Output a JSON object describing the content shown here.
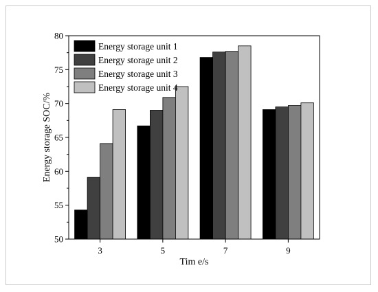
{
  "chart_data": {
    "type": "bar",
    "title": "",
    "xlabel": "Tim e/s",
    "ylabel": "Energy storage SOC/%",
    "categories": [
      "3",
      "5",
      "7",
      "9"
    ],
    "ylim": [
      50,
      80
    ],
    "yticks": [
      50,
      55,
      60,
      65,
      70,
      75,
      80
    ],
    "grid": false,
    "legend_position": "top-left",
    "series": [
      {
        "name": "Energy storage unit 1",
        "color": "#000000",
        "values": [
          54.3,
          66.7,
          76.8,
          69.1
        ]
      },
      {
        "name": "Energy storage unit 2",
        "color": "#404040",
        "values": [
          59.1,
          69.0,
          77.6,
          69.5
        ]
      },
      {
        "name": "Energy storage unit 3",
        "color": "#7f7f7f",
        "values": [
          64.1,
          70.9,
          77.7,
          69.7
        ]
      },
      {
        "name": "Energy storage unit 4",
        "color": "#c0c0c0",
        "values": [
          69.1,
          72.5,
          78.5,
          70.1
        ]
      }
    ]
  }
}
